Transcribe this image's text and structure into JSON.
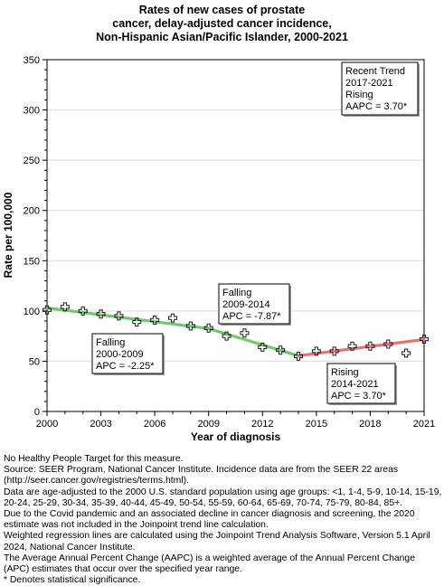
{
  "chart_data": {
    "type": "line",
    "title_lines": [
      "Rates of new cases of prostate",
      "cancer, delay-adjusted cancer incidence,",
      "Non-Hispanic Asian/Pacific Islander,  2000-2021"
    ],
    "xlabel": "Year of diagnosis",
    "ylabel": "Rate per 100,000",
    "xlim": [
      2000,
      2021
    ],
    "ylim": [
      0,
      350
    ],
    "x_ticks": [
      2000,
      2003,
      2006,
      2009,
      2012,
      2015,
      2018,
      2021
    ],
    "y_ticks": [
      0,
      50,
      100,
      150,
      200,
      250,
      300,
      350
    ],
    "grid": "horizontal",
    "observed": {
      "x": [
        2000,
        2001,
        2002,
        2003,
        2004,
        2005,
        2006,
        2007,
        2008,
        2009,
        2010,
        2011,
        2012,
        2013,
        2014,
        2015,
        2016,
        2017,
        2018,
        2019,
        2020,
        2021
      ],
      "y": [
        101,
        104,
        100,
        97,
        95,
        89,
        91,
        93,
        85,
        83,
        75,
        78,
        64,
        61,
        55,
        60,
        60,
        65,
        65,
        67,
        58,
        72
      ]
    },
    "segments": [
      {
        "x": [
          2000,
          2009
        ],
        "y": [
          103,
          82.5
        ],
        "color": "#6ccb6c"
      },
      {
        "x": [
          2009,
          2014
        ],
        "y": [
          82.5,
          55.4
        ],
        "color": "#6ccb6c"
      },
      {
        "x": [
          2014,
          2021
        ],
        "y": [
          55.4,
          71.7
        ],
        "color": "#f26d6d"
      }
    ],
    "annotations": [
      {
        "lines": [
          "Falling",
          "2000-2009",
          "APC = -2.25*"
        ]
      },
      {
        "lines": [
          "Falling",
          "2009-2014",
          "APC = -7.87*"
        ]
      },
      {
        "lines": [
          "Rising",
          "2014-2021",
          "APC =  3.70*"
        ]
      },
      {
        "lines": [
          "Recent Trend",
          "2017-2021",
          "Rising",
          "AAPC =  3.70*"
        ]
      }
    ]
  },
  "notes": [
    "No Healthy People Target for this measure.",
    "Source: SEER Program, National Cancer Institute. Incidence data are from the SEER 22 areas (http://seer.cancer.gov/registries/terms.html).",
    "Data are age-adjusted to the 2000 U.S. standard population using age groups: <1, 1-4, 5-9, 10-14, 15-19, 20-24, 25-29, 30-34, 35-39, 40-44, 45-49, 50-54, 55-59, 60-64, 65-69, 70-74, 75-79, 80-84, 85+.",
    "Due to the Covid pandemic and an associated decline in cancer diagnosis and screening, the 2020 estimate was not included in the Joinpoint trend line calculation.",
    "Weighted regression lines are calculated using the Joinpoint Trend Analysis Software, Version 5.1 April 2024, National Cancer Institute.",
    "The Average Annual Percent Change (AAPC) is a weighted average of the Annual Percent Change (APC) estimates that occur over the specified year range.",
    "* Denotes statistical significance."
  ]
}
